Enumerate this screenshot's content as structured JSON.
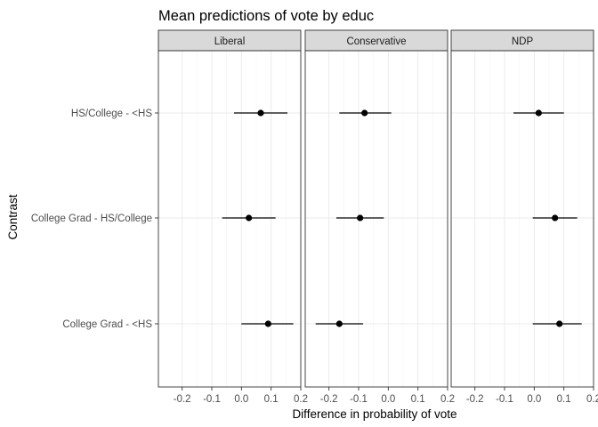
{
  "chart_data": {
    "type": "scatter",
    "title": "Mean predictions of vote by educ",
    "xlabel": "Difference in probability of vote",
    "ylabel": "Contrast",
    "xlim": [
      -0.28,
      0.2
    ],
    "x_ticks": [
      -0.2,
      -0.1,
      0.0,
      0.1,
      0.2
    ],
    "x_tick_labels": [
      "-0.2",
      "-0.1",
      "0.0",
      "0.1",
      "0.2"
    ],
    "categories": [
      "HS/College - <HS",
      "College Grad - HS/College",
      "College Grad - <HS"
    ],
    "grid": true,
    "legend": "none",
    "panels": [
      {
        "name": "Liberal",
        "estimates": [
          0.065,
          0.025,
          0.09
        ],
        "lower": [
          -0.025,
          -0.065,
          0.0
        ],
        "upper": [
          0.155,
          0.115,
          0.175
        ]
      },
      {
        "name": "Conservative",
        "estimates": [
          -0.08,
          -0.095,
          -0.165
        ],
        "lower": [
          -0.165,
          -0.175,
          -0.245
        ],
        "upper": [
          0.01,
          -0.015,
          -0.085
        ]
      },
      {
        "name": "NDP",
        "estimates": [
          0.015,
          0.07,
          0.085
        ],
        "lower": [
          -0.07,
          -0.005,
          -0.005
        ],
        "upper": [
          0.1,
          0.145,
          0.16
        ]
      }
    ]
  },
  "colors": {
    "strip_fill": "#d9d9d9",
    "border": "#333333",
    "grid": "#ebebeb",
    "point": "#000000",
    "tick_text": "#4d4d4d"
  }
}
